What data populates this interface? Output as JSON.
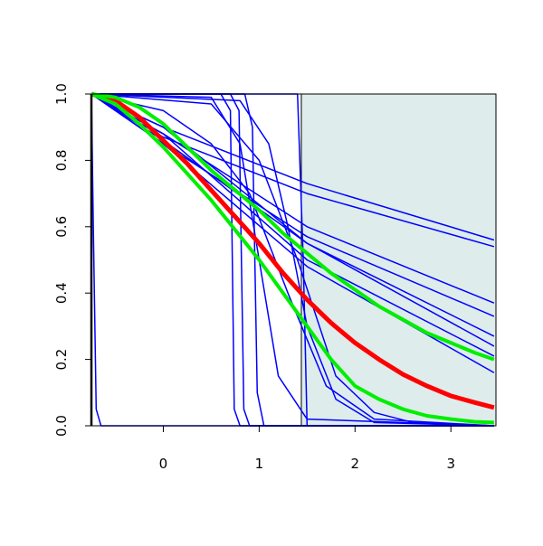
{
  "chart_data": {
    "type": "line",
    "xlim": [
      -0.75,
      3.47
    ],
    "ylim": [
      0,
      1
    ],
    "xticks": [
      0,
      1,
      2,
      3
    ],
    "yticks": [
      {
        "value": 0,
        "label": "0.0"
      },
      {
        "value": 0.2,
        "label": "0.2"
      },
      {
        "value": 0.4,
        "label": "0.4"
      },
      {
        "value": 0.6,
        "label": "0.6"
      },
      {
        "value": 0.8,
        "label": "0.8"
      },
      {
        "value": 1,
        "label": "1.0"
      }
    ],
    "shaded_region": {
      "xlim": [
        1.44,
        3.47
      ],
      "ylim": [
        0,
        1
      ],
      "color": "#deecec"
    },
    "series": [
      {
        "color": "#0000ff",
        "width": 1.5,
        "x": [
          -0.75,
          -0.73,
          -0.7,
          -0.65,
          3.45
        ],
        "values": [
          1,
          0.6,
          0.05,
          0,
          0
        ]
      },
      {
        "color": "#0000ff",
        "width": 1.5,
        "x": [
          -0.75,
          0.6,
          0.7,
          0.74,
          0.8,
          3.45
        ],
        "values": [
          1,
          1,
          0.95,
          0.05,
          0,
          0
        ]
      },
      {
        "color": "#0000ff",
        "width": 1.5,
        "x": [
          -0.75,
          0.7,
          0.79,
          0.84,
          0.9,
          3.45
        ],
        "values": [
          1,
          1,
          0.95,
          0.05,
          0,
          0
        ]
      },
      {
        "color": "#0000ff",
        "width": 1.5,
        "x": [
          -0.75,
          0.5,
          0.8,
          1.0,
          1.2,
          1.5,
          3.45
        ],
        "values": [
          1,
          0.99,
          0.85,
          0.5,
          0.15,
          0.02,
          0
        ]
      },
      {
        "color": "#0000ff",
        "width": 1.5,
        "x": [
          -0.75,
          0.8,
          1.1,
          1.3,
          1.5,
          1.8,
          2.2,
          3.45
        ],
        "values": [
          1,
          0.98,
          0.85,
          0.6,
          0.3,
          0.08,
          0.01,
          0
        ]
      },
      {
        "color": "#0000ff",
        "width": 1.5,
        "x": [
          -0.75,
          1.4,
          1.46,
          1.5,
          3.45
        ],
        "values": [
          1,
          1,
          0.5,
          0,
          0
        ]
      },
      {
        "color": "#0000ff",
        "width": 1.5,
        "x": [
          -0.75,
          0.5,
          1.0,
          1.4,
          1.8,
          2.2,
          2.6,
          3.45
        ],
        "values": [
          1,
          0.97,
          0.8,
          0.5,
          0.15,
          0.04,
          0.01,
          0
        ]
      },
      {
        "color": "#0000ff",
        "width": 1.5,
        "x": [
          -0.75,
          0.85,
          0.93,
          0.98,
          1.05,
          3.45
        ],
        "values": [
          1,
          1,
          0.9,
          0.1,
          0,
          0
        ]
      },
      {
        "color": "#0000ff",
        "width": 1.5,
        "x": [
          -0.75,
          0,
          0.5,
          0.9,
          1.3,
          1.7,
          2.2,
          3.45
        ],
        "values": [
          1,
          0.95,
          0.85,
          0.7,
          0.4,
          0.12,
          0.02,
          0
        ]
      },
      {
        "color": "#0000ff",
        "width": 1.5,
        "x": [
          -0.75,
          0,
          1.5,
          3.45
        ],
        "values": [
          1,
          0.9,
          0.73,
          0.56
        ]
      },
      {
        "color": "#0000ff",
        "width": 1.5,
        "x": [
          -0.75,
          0,
          1.5,
          3.45
        ],
        "values": [
          1,
          0.87,
          0.7,
          0.54
        ]
      },
      {
        "color": "#0000ff",
        "width": 1.5,
        "x": [
          -0.75,
          0,
          1.5,
          3.45
        ],
        "values": [
          1,
          0.88,
          0.6,
          0.37
        ]
      },
      {
        "color": "#0000ff",
        "width": 1.5,
        "x": [
          -0.75,
          0,
          1.5,
          3.45
        ],
        "values": [
          1,
          0.85,
          0.57,
          0.33
        ]
      },
      {
        "color": "#0000ff",
        "width": 1.5,
        "x": [
          -0.75,
          0,
          1.5,
          3.45
        ],
        "values": [
          1,
          0.86,
          0.55,
          0.27
        ]
      },
      {
        "color": "#0000ff",
        "width": 1.5,
        "x": [
          -0.75,
          0,
          1.5,
          3.45
        ],
        "values": [
          1,
          0.9,
          0.55,
          0.24
        ]
      },
      {
        "color": "#0000ff",
        "width": 1.5,
        "x": [
          -0.75,
          0,
          1.5,
          3.45
        ],
        "values": [
          1,
          0.88,
          0.5,
          0.21
        ]
      },
      {
        "color": "#0000ff",
        "width": 1.5,
        "x": [
          -0.75,
          0,
          1.5,
          3.45
        ],
        "values": [
          1,
          0.85,
          0.48,
          0.16
        ]
      },
      {
        "color": "#ff0000",
        "width": 5,
        "x": [
          -0.75,
          -0.5,
          -0.25,
          0,
          0.25,
          0.5,
          0.75,
          1,
          1.25,
          1.5,
          1.75,
          2,
          2.25,
          2.5,
          2.75,
          3,
          3.25,
          3.45
        ],
        "values": [
          1,
          0.98,
          0.93,
          0.86,
          0.79,
          0.71,
          0.63,
          0.55,
          0.46,
          0.38,
          0.31,
          0.25,
          0.2,
          0.155,
          0.12,
          0.09,
          0.07,
          0.055
        ]
      },
      {
        "color": "#00ee00",
        "width": 4,
        "x": [
          -0.75,
          -0.5,
          -0.25,
          0,
          0.25,
          0.5,
          0.75,
          1,
          1.25,
          1.5,
          1.75,
          2,
          2.25,
          2.5,
          2.75,
          3,
          3.25,
          3.45
        ],
        "values": [
          1,
          0.99,
          0.96,
          0.91,
          0.84,
          0.77,
          0.71,
          0.65,
          0.58,
          0.52,
          0.46,
          0.41,
          0.36,
          0.32,
          0.28,
          0.25,
          0.22,
          0.2
        ]
      },
      {
        "color": "#00ee00",
        "width": 4,
        "x": [
          -0.75,
          -0.5,
          -0.25,
          0,
          0.25,
          0.5,
          0.75,
          1,
          1.25,
          1.5,
          1.75,
          2,
          2.25,
          2.5,
          2.75,
          3,
          3.25,
          3.45
        ],
        "values": [
          1,
          0.97,
          0.91,
          0.84,
          0.76,
          0.68,
          0.59,
          0.5,
          0.4,
          0.3,
          0.2,
          0.12,
          0.08,
          0.05,
          0.03,
          0.02,
          0.012,
          0.01
        ]
      }
    ]
  }
}
